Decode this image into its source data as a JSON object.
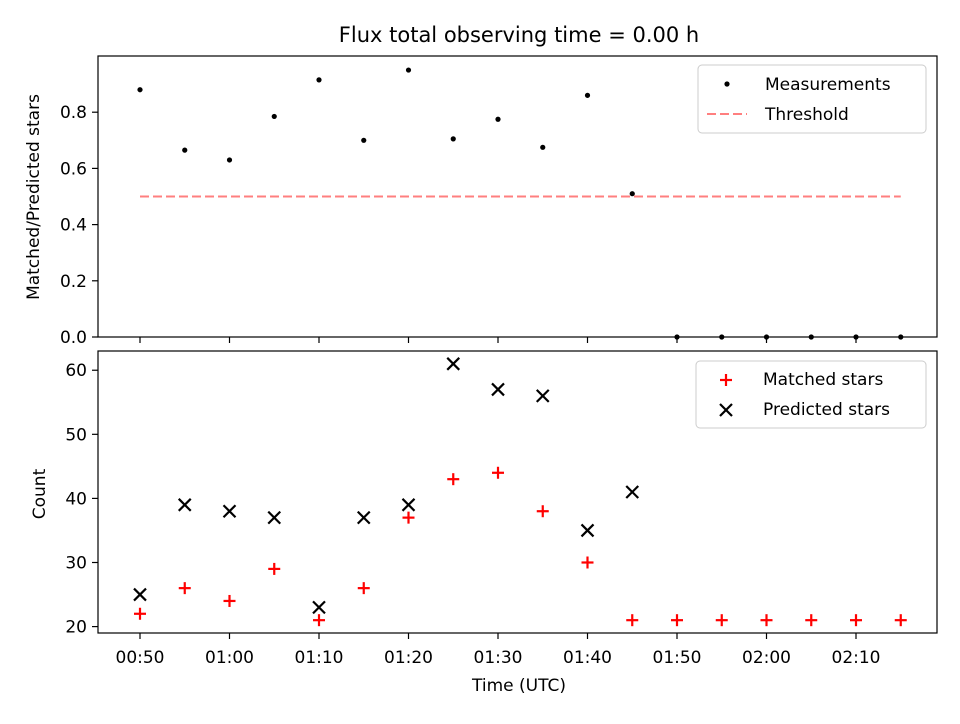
{
  "chart_data": {
    "title": "Flux total observing time = 0.00 h",
    "xlabel": "Time (UTC)",
    "xtick_labels": [
      "00:50",
      "01:00",
      "01:10",
      "01:20",
      "01:30",
      "01:40",
      "01:50",
      "02:00",
      "02:10"
    ],
    "x_times": [
      "00:50",
      "00:55",
      "01:00",
      "01:05",
      "01:10",
      "01:15",
      "01:20",
      "01:25",
      "01:30",
      "01:35",
      "01:40",
      "01:45",
      "01:50",
      "01:55",
      "02:00",
      "02:05",
      "02:10",
      "02:15"
    ],
    "panels": [
      {
        "type": "scatter",
        "ylabel": "Matched/Predicted stars",
        "ylim": [
          0.0,
          1.0
        ],
        "ytick_labels": [
          "0.0",
          "0.2",
          "0.4",
          "0.6",
          "0.8"
        ],
        "series": [
          {
            "name": "Measurements",
            "marker": "dot",
            "color": "#000000",
            "values": [
              0.88,
              0.665,
              0.63,
              0.785,
              0.915,
              0.7,
              0.95,
              0.705,
              0.775,
              0.675,
              0.86,
              0.51,
              0.0,
              0.0,
              0.0,
              0.0,
              0.0,
              0.0
            ]
          }
        ],
        "threshold": {
          "name": "Threshold",
          "value": 0.5,
          "color": "#ff7f7f",
          "x_range": [
            "00:50",
            "02:15"
          ]
        },
        "legend_position": "top-right",
        "grid": false
      },
      {
        "type": "scatter",
        "ylabel": "Count",
        "ylim": [
          19,
          63
        ],
        "ytick_labels": [
          "20",
          "30",
          "40",
          "50",
          "60"
        ],
        "series": [
          {
            "name": "Matched stars",
            "marker": "plus",
            "color": "#ff0000",
            "values": [
              22,
              26,
              24,
              29,
              21,
              26,
              37,
              43,
              44,
              38,
              30,
              21,
              21,
              21,
              21,
              21,
              21,
              21
            ]
          },
          {
            "name": "Predicted stars",
            "marker": "x",
            "color": "#000000",
            "values": [
              25,
              39,
              38,
              37,
              23,
              37,
              39,
              61,
              57,
              56,
              35,
              41,
              null,
              null,
              null,
              null,
              null,
              null
            ]
          }
        ],
        "legend_position": "top-right",
        "grid": false
      }
    ]
  }
}
